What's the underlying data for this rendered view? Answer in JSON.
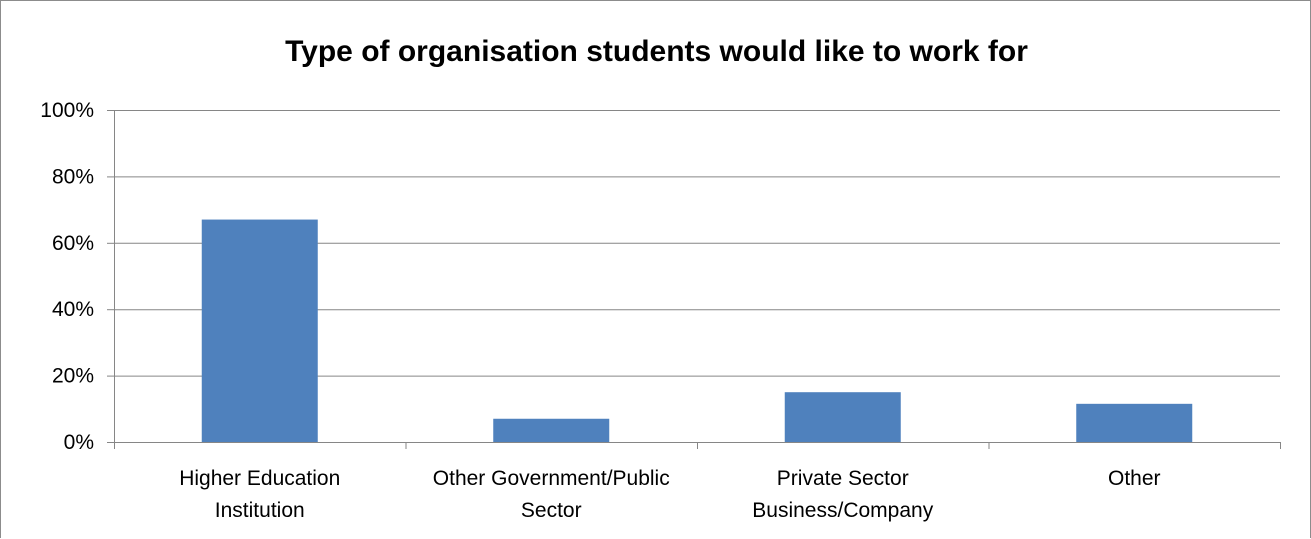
{
  "chart_data": {
    "type": "bar",
    "title": "Type of organisation students would like to work for",
    "categories": [
      [
        "Higher Education",
        "Institution"
      ],
      [
        "Other Government/Public",
        "Sector"
      ],
      [
        "Private Sector",
        "Business/Company"
      ],
      [
        "Other"
      ]
    ],
    "values": [
      67,
      7,
      15,
      11.5
    ],
    "value_unit": "%",
    "ylim": [
      0,
      100
    ],
    "yticks": [
      "0%",
      "20%",
      "40%",
      "60%",
      "80%",
      "100%"
    ],
    "xlabel": "",
    "ylabel": "",
    "grid": true,
    "legend": "none",
    "bar_color": "#4f81bd",
    "grid_color": "#868686",
    "axis_color": "#868686"
  }
}
